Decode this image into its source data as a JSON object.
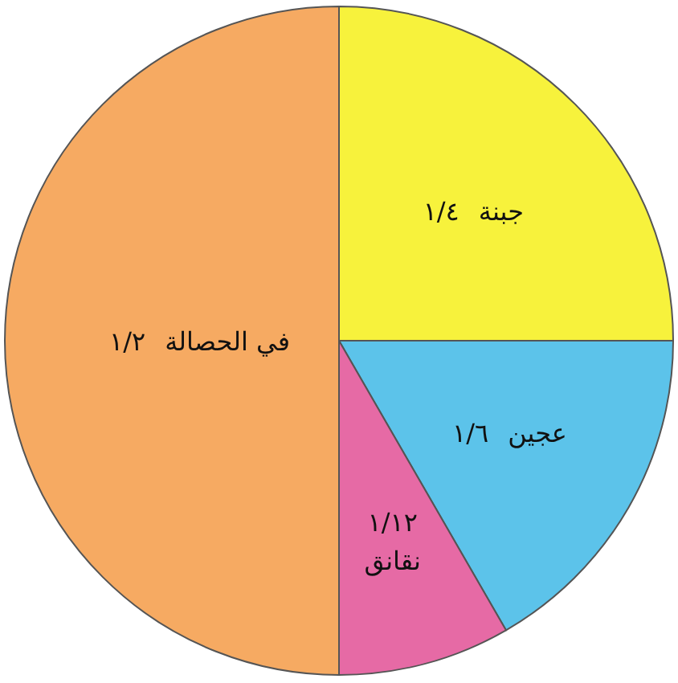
{
  "chart_data": {
    "type": "pie",
    "categories": [
      "جبنة",
      "عجين",
      "نقانق",
      "في الحصالة"
    ],
    "values": [
      0.25,
      0.1667,
      0.0833,
      0.5
    ],
    "colors": [
      "#f7f23c",
      "#5cc3ea",
      "#e66aa5",
      "#f6aa62"
    ],
    "value_labels": [
      "١/٤",
      "١/٦",
      "١/١٢",
      "١/٢"
    ]
  }
}
